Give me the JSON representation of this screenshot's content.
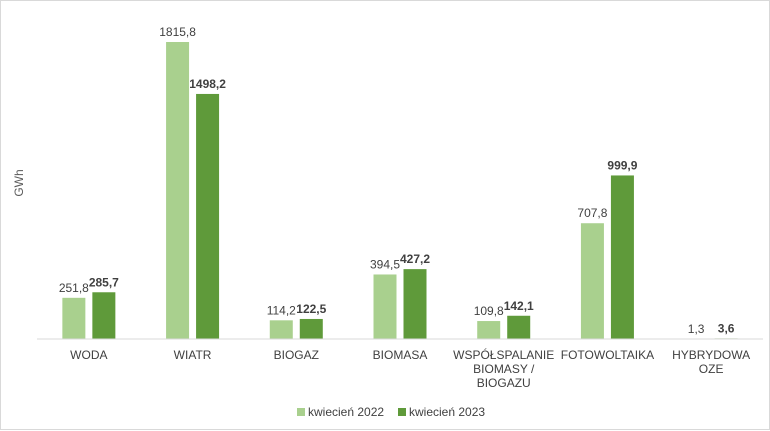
{
  "chart_data": {
    "type": "bar",
    "ylabel": "GWh",
    "categories": [
      [
        "WODA"
      ],
      [
        "WIATR"
      ],
      [
        "BIOGAZ"
      ],
      [
        "BIOMASA"
      ],
      [
        "WSPÓŁSPALANIE",
        "BIOMASY /",
        "BIOGAZU"
      ],
      [
        "FOTOWOLTAIKA"
      ],
      [
        "HYBRYDOWA",
        "OZE"
      ]
    ],
    "series": [
      {
        "name": "kwiecień 2022",
        "color": "#a9d08e",
        "values": [
          251.8,
          1815.8,
          114.2,
          394.5,
          109.8,
          707.8,
          1.3
        ],
        "labels": [
          "251,8",
          "1815,8",
          "114,2",
          "394,5",
          "109,8",
          "707,8",
          "1,3"
        ],
        "bold": false
      },
      {
        "name": "kwiecień 2023",
        "color": "#5f9a3a",
        "values": [
          285.7,
          1498.2,
          122.5,
          427.2,
          142.1,
          999.9,
          3.6
        ],
        "labels": [
          "285,7",
          "1498,2",
          "122,5",
          "427,2",
          "142,1",
          "999,9",
          "3,6"
        ],
        "bold": true
      }
    ],
    "ylim": [
      0,
      1815.8
    ],
    "grid": false,
    "legend": "bottom-center"
  }
}
